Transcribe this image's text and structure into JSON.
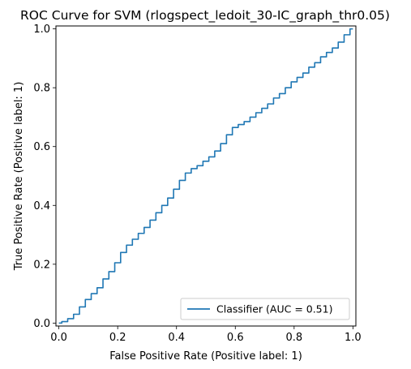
{
  "chart_data": {
    "type": "line",
    "title": "ROC Curve for SVM (rlogspect_ledoit_30-IC_graph_thr0.05)",
    "xlabel": "False Positive Rate (Positive label: 1)",
    "ylabel": "True Positive Rate (Positive label: 1)",
    "xlim": [
      0,
      1
    ],
    "ylim": [
      0,
      1
    ],
    "xticks": [
      "0.0",
      "0.2",
      "0.4",
      "0.6",
      "0.8",
      "1.0"
    ],
    "yticks": [
      "0.0",
      "0.2",
      "0.4",
      "0.6",
      "0.8",
      "1.0"
    ],
    "grid": false,
    "legend_position": "lower-right",
    "series": [
      {
        "name": "Classifier (AUC = 0.51)",
        "color": "#1f77b4",
        "x": [
          0.0,
          0.02,
          0.04,
          0.06,
          0.08,
          0.1,
          0.12,
          0.14,
          0.16,
          0.18,
          0.2,
          0.22,
          0.24,
          0.26,
          0.28,
          0.3,
          0.32,
          0.34,
          0.36,
          0.38,
          0.4,
          0.42,
          0.44,
          0.46,
          0.48,
          0.5,
          0.52,
          0.54,
          0.56,
          0.58,
          0.6,
          0.62,
          0.64,
          0.66,
          0.68,
          0.7,
          0.72,
          0.74,
          0.76,
          0.78,
          0.8,
          0.82,
          0.84,
          0.86,
          0.88,
          0.9,
          0.92,
          0.94,
          0.96,
          0.98,
          1.0
        ],
        "y": [
          0.0,
          0.005,
          0.015,
          0.03,
          0.055,
          0.08,
          0.1,
          0.12,
          0.15,
          0.175,
          0.205,
          0.24,
          0.265,
          0.285,
          0.305,
          0.325,
          0.35,
          0.375,
          0.4,
          0.425,
          0.455,
          0.485,
          0.51,
          0.525,
          0.535,
          0.55,
          0.565,
          0.585,
          0.61,
          0.64,
          0.665,
          0.675,
          0.685,
          0.7,
          0.715,
          0.73,
          0.745,
          0.765,
          0.78,
          0.8,
          0.82,
          0.835,
          0.85,
          0.87,
          0.885,
          0.905,
          0.92,
          0.935,
          0.955,
          0.98,
          1.0
        ]
      }
    ]
  }
}
